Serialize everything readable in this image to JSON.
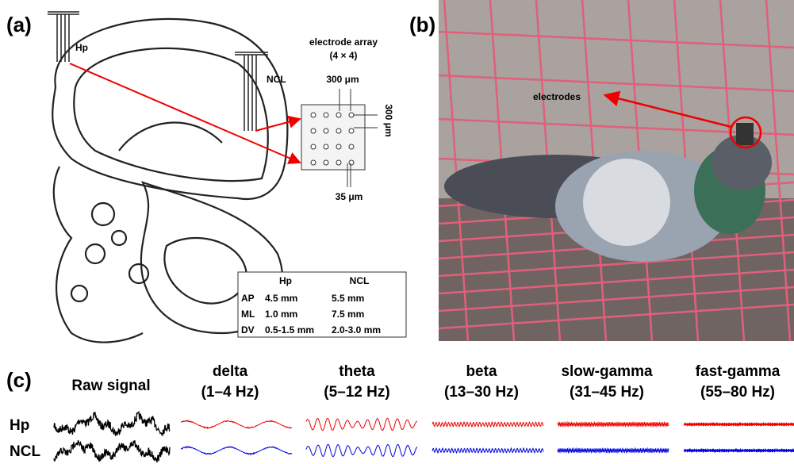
{
  "panels": {
    "a": {
      "label": "(a)",
      "probes": [
        "Hp",
        "NCL"
      ],
      "array": {
        "title": "electrode array",
        "size": "(4 × 4)",
        "pitch_top": "300 μm",
        "pitch_side": "300 μm",
        "diameter": "35 μm"
      },
      "table": {
        "header": [
          "Hp",
          "NCL"
        ],
        "rows": [
          [
            "AP",
            "4.5 mm",
            "5.5 mm"
          ],
          [
            "ML",
            "1.0 mm",
            "7.5 mm"
          ],
          [
            "DV",
            "0.5-1.5 mm",
            "2.0-3.0 mm"
          ]
        ]
      }
    },
    "b": {
      "label": "(b)",
      "annotation": "electrodes"
    },
    "c": {
      "label": "(c)",
      "columns": [
        {
          "name": "Raw signal"
        },
        {
          "name": "delta",
          "range": "(1–4 Hz)"
        },
        {
          "name": "theta",
          "range": "(5–12 Hz)"
        },
        {
          "name": "beta",
          "range": "(13–30 Hz)"
        },
        {
          "name": "slow-gamma",
          "range": "(31–45 Hz)"
        },
        {
          "name": "fast-gamma",
          "range": "(55–80 Hz)"
        }
      ],
      "rows": [
        "Hp",
        "NCL"
      ]
    }
  }
}
